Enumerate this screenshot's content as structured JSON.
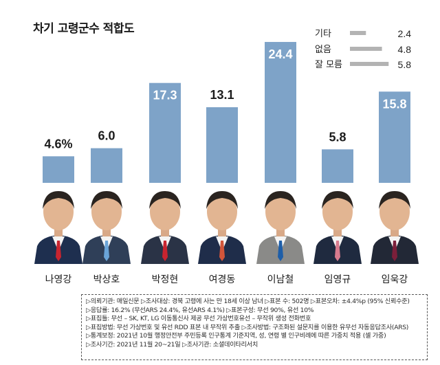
{
  "chart_data": {
    "type": "bar",
    "title": "차기 고령군수 적합도",
    "categories": [
      "나영강",
      "박상호",
      "박정현",
      "여경동",
      "이남철",
      "임영규",
      "임욱강"
    ],
    "values": [
      4.6,
      6.0,
      17.3,
      13.1,
      24.4,
      5.8,
      15.8
    ],
    "value_labels": [
      "4.6%",
      "6.0",
      "17.3",
      "13.1",
      "24.4",
      "5.8",
      "15.8"
    ],
    "legend": [
      {
        "label": "기타",
        "value": 2.4,
        "value_label": "2.4"
      },
      {
        "label": "없음",
        "value": 4.8,
        "value_label": "4.8"
      },
      {
        "label": "잘 모름",
        "value": 5.8,
        "value_label": "5.8"
      }
    ],
    "colors": {
      "bar": "#7ea3c8",
      "legend_bar": "#b3b3b3"
    }
  },
  "notes": [
    "▷의뢰기관: 매일신문 ▷조사대상: 경북 고령에 사는 만 18세 이상 남녀 ▷표본 수: 502명 ▷표본오차: ±4.4%p (95% 신뢰수준)",
    "▷응답률: 16.2% (무선ARS 24.4%, 유선ARS 4.1%) ▷표본구성: 무선 90%, 유선 10%",
    "▷표집틀: 무선 – SK, KT, LG 이동통신사 제공 무선 가상번호유선 – 무작위 생성 전화번호",
    "▷표집방법: 무선 가상번호 및 유선 RDD 표본 내 무작위 추출 ▷조사방법: 구조화된 설문지를 이용한 유무선 자동응답조사(ARS)",
    "▷통계보정: 2021년 10월 행정안전부 주민등록 인구통계 기준지역, 성, 연령 별 인구비례에 따른 가중치 적용 (셀 가중)",
    "▷조사기간: 2021년 11월 20~21일 ▷조사기관: 소셜데이타리서치"
  ]
}
